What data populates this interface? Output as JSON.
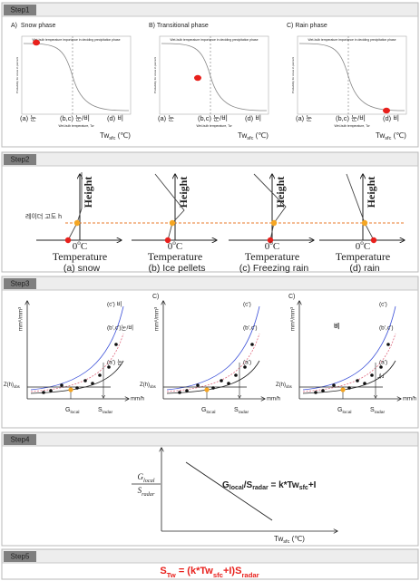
{
  "step1": {
    "label": "Step1",
    "panels": [
      {
        "title": "A)  Snow phase"
      },
      {
        "title": "B) Transitional phase"
      },
      {
        "title": "C) Rain phase"
      }
    ],
    "plot_title": "Wet-bulb temperature importance in deciding precipitation phase",
    "y_label": "Probability for snow in percent",
    "x_label": "Wet-bulb temperature, Tw",
    "phases": [
      "(a) 눈",
      "(b,c) 눈/비",
      "(d) 비"
    ],
    "x_axis": [
      {
        "t": "Tw"
      },
      {
        "sub": "sfc"
      },
      {
        "t": " (℃)"
      }
    ]
  },
  "step2": {
    "label": "Step2",
    "radar_height": "레이더 고도 h",
    "y_axis": "Height",
    "zero": [
      {
        "t": "0"
      },
      {
        "sup": "o"
      },
      {
        "t": "C"
      }
    ],
    "x_axis": "Temperature",
    "cases": [
      "(a) snow",
      "(b) Ice pellets",
      "(c) Freezing rain",
      "(d) rain"
    ]
  },
  "step3": {
    "label": "Step3",
    "y_axis": "mm⁶/mm³",
    "x_axis": "mm/h",
    "z_obs": [
      {
        "t": "Z(h)"
      },
      {
        "sub": "obs"
      }
    ],
    "g_local": [
      {
        "t": "G"
      },
      {
        "sub": "local"
      }
    ],
    "s_radar": [
      {
        "t": "S"
      },
      {
        "sub": "radar"
      }
    ],
    "panels": [
      {
        "curves": [
          "(c') 비",
          "(b',c')눈/비",
          "(a') 눈"
        ]
      },
      {
        "prefix": "C)",
        "curves": [
          "(c')",
          "(b',c')",
          "(a')"
        ]
      },
      {
        "prefix": "C)",
        "curves": [
          "(c')",
          "(b',c')",
          "(a')"
        ],
        "notes": [
          "비",
          "눈"
        ]
      }
    ]
  },
  "step4": {
    "label": "Step4",
    "numerator": [
      {
        "t": "G"
      },
      {
        "sub": "local"
      }
    ],
    "denominator": [
      {
        "t": "S"
      },
      {
        "sub": "radar"
      }
    ],
    "equation": [
      {
        "t": "G"
      },
      {
        "sub": "local"
      },
      {
        "t": "/S"
      },
      {
        "sub": "radar"
      },
      {
        "t": " = k*Tw"
      },
      {
        "sub": "sfc"
      },
      {
        "t": "+I"
      }
    ],
    "x_axis": [
      {
        "t": "Tw"
      },
      {
        "sub": "sfc"
      },
      {
        "t": " (℃)"
      }
    ]
  },
  "step5": {
    "label": "Step5",
    "formula": [
      {
        "t": "S"
      },
      {
        "sub": "Tw"
      },
      {
        "t": " = (k*Tw"
      },
      {
        "sub": "sfc"
      },
      {
        "t": "+I)S"
      },
      {
        "sub": "radar"
      }
    ]
  }
}
